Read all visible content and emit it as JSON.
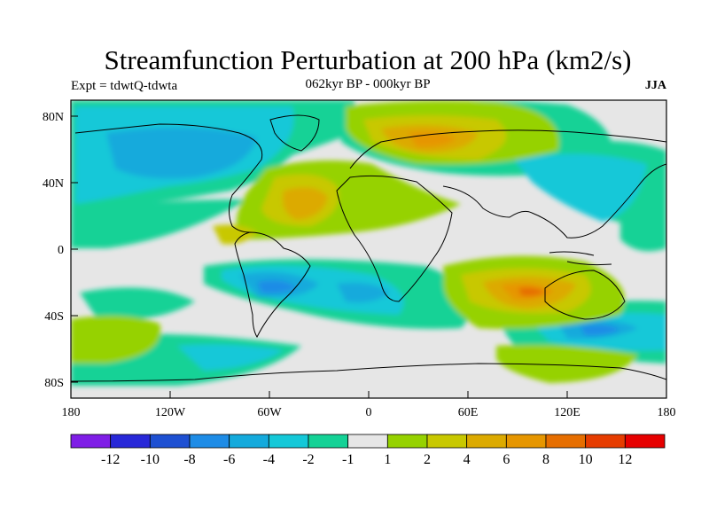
{
  "title": "Streamfunction Perturbation at 200 hPa (km2/s)",
  "subtitle_left": "Expt = tdwtQ-tdwta",
  "subtitle_center": "062kyr BP - 000kyr BP",
  "subtitle_right": "JJA",
  "map": {
    "x_ticks": [
      "180",
      "120W",
      "60W",
      "0",
      "60E",
      "120E",
      "180"
    ],
    "y_ticks": [
      "80N",
      "40N",
      "0",
      "40S",
      "80S"
    ],
    "background_color": "#e6e6e6"
  },
  "colorbar": {
    "colors": [
      "#7f1ee6",
      "#2828d8",
      "#1e50d2",
      "#1e8ce6",
      "#14aadc",
      "#14c8d8",
      "#14d296",
      "#e6e6e6",
      "#96d200",
      "#c8c800",
      "#dcaa00",
      "#e69600",
      "#e66e00",
      "#e63c00",
      "#e60000"
    ],
    "labels": [
      "-12",
      "-10",
      "-8",
      "-6",
      "-4",
      "-2",
      "-1",
      "1",
      "2",
      "4",
      "6",
      "8",
      "10",
      "12"
    ]
  }
}
